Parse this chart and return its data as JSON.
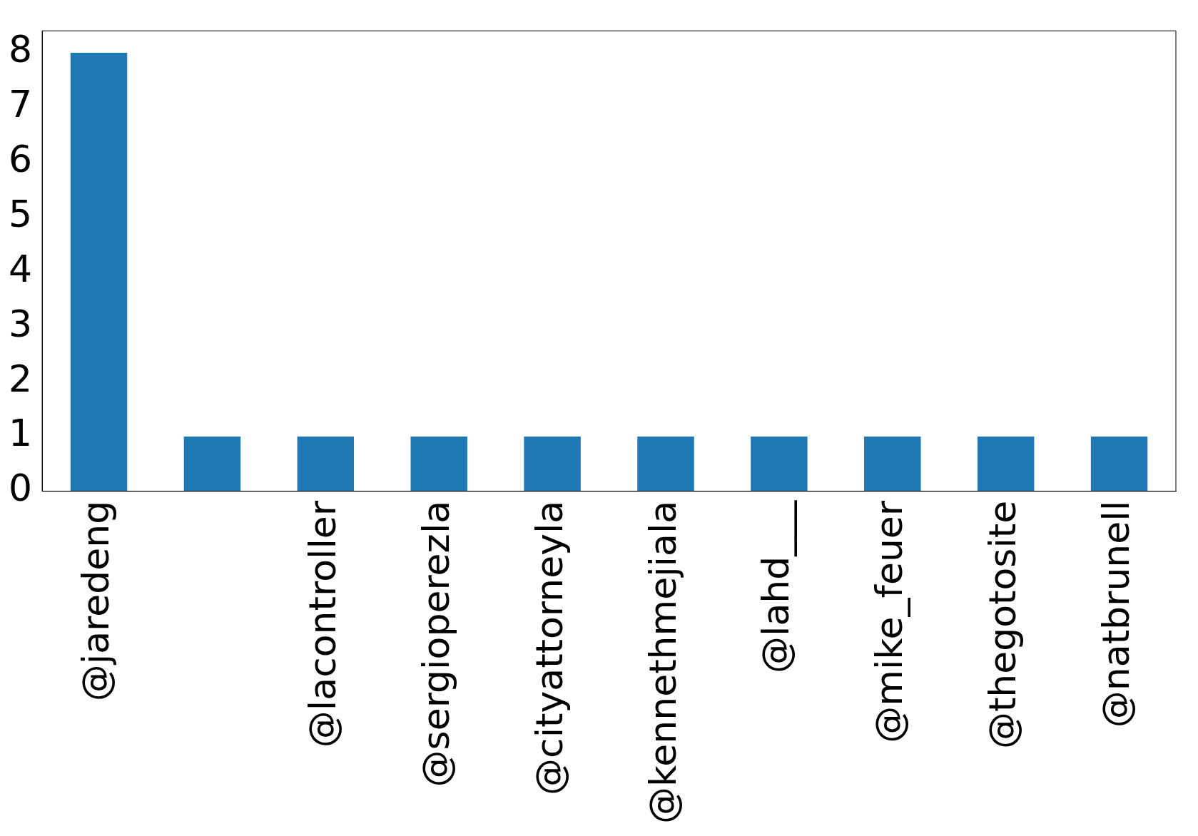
{
  "chart_data": {
    "type": "bar",
    "categories": [
      "@jaredeng",
      null,
      "@lacontroller",
      "@sergioperezla",
      "@cityattorneyla",
      "@kennethmejiala",
      "@lahd___",
      "@mike_feuer",
      "@thegotosite",
      "@natbrunell"
    ],
    "values": [
      8,
      1,
      1,
      1,
      1,
      1,
      1,
      1,
      1,
      1
    ],
    "color": "#1f77b4",
    "ylim": [
      0,
      8.4
    ],
    "yticks": [
      0,
      1,
      2,
      3,
      4,
      5,
      6,
      7,
      8
    ],
    "grid": false,
    "legend": false
  }
}
